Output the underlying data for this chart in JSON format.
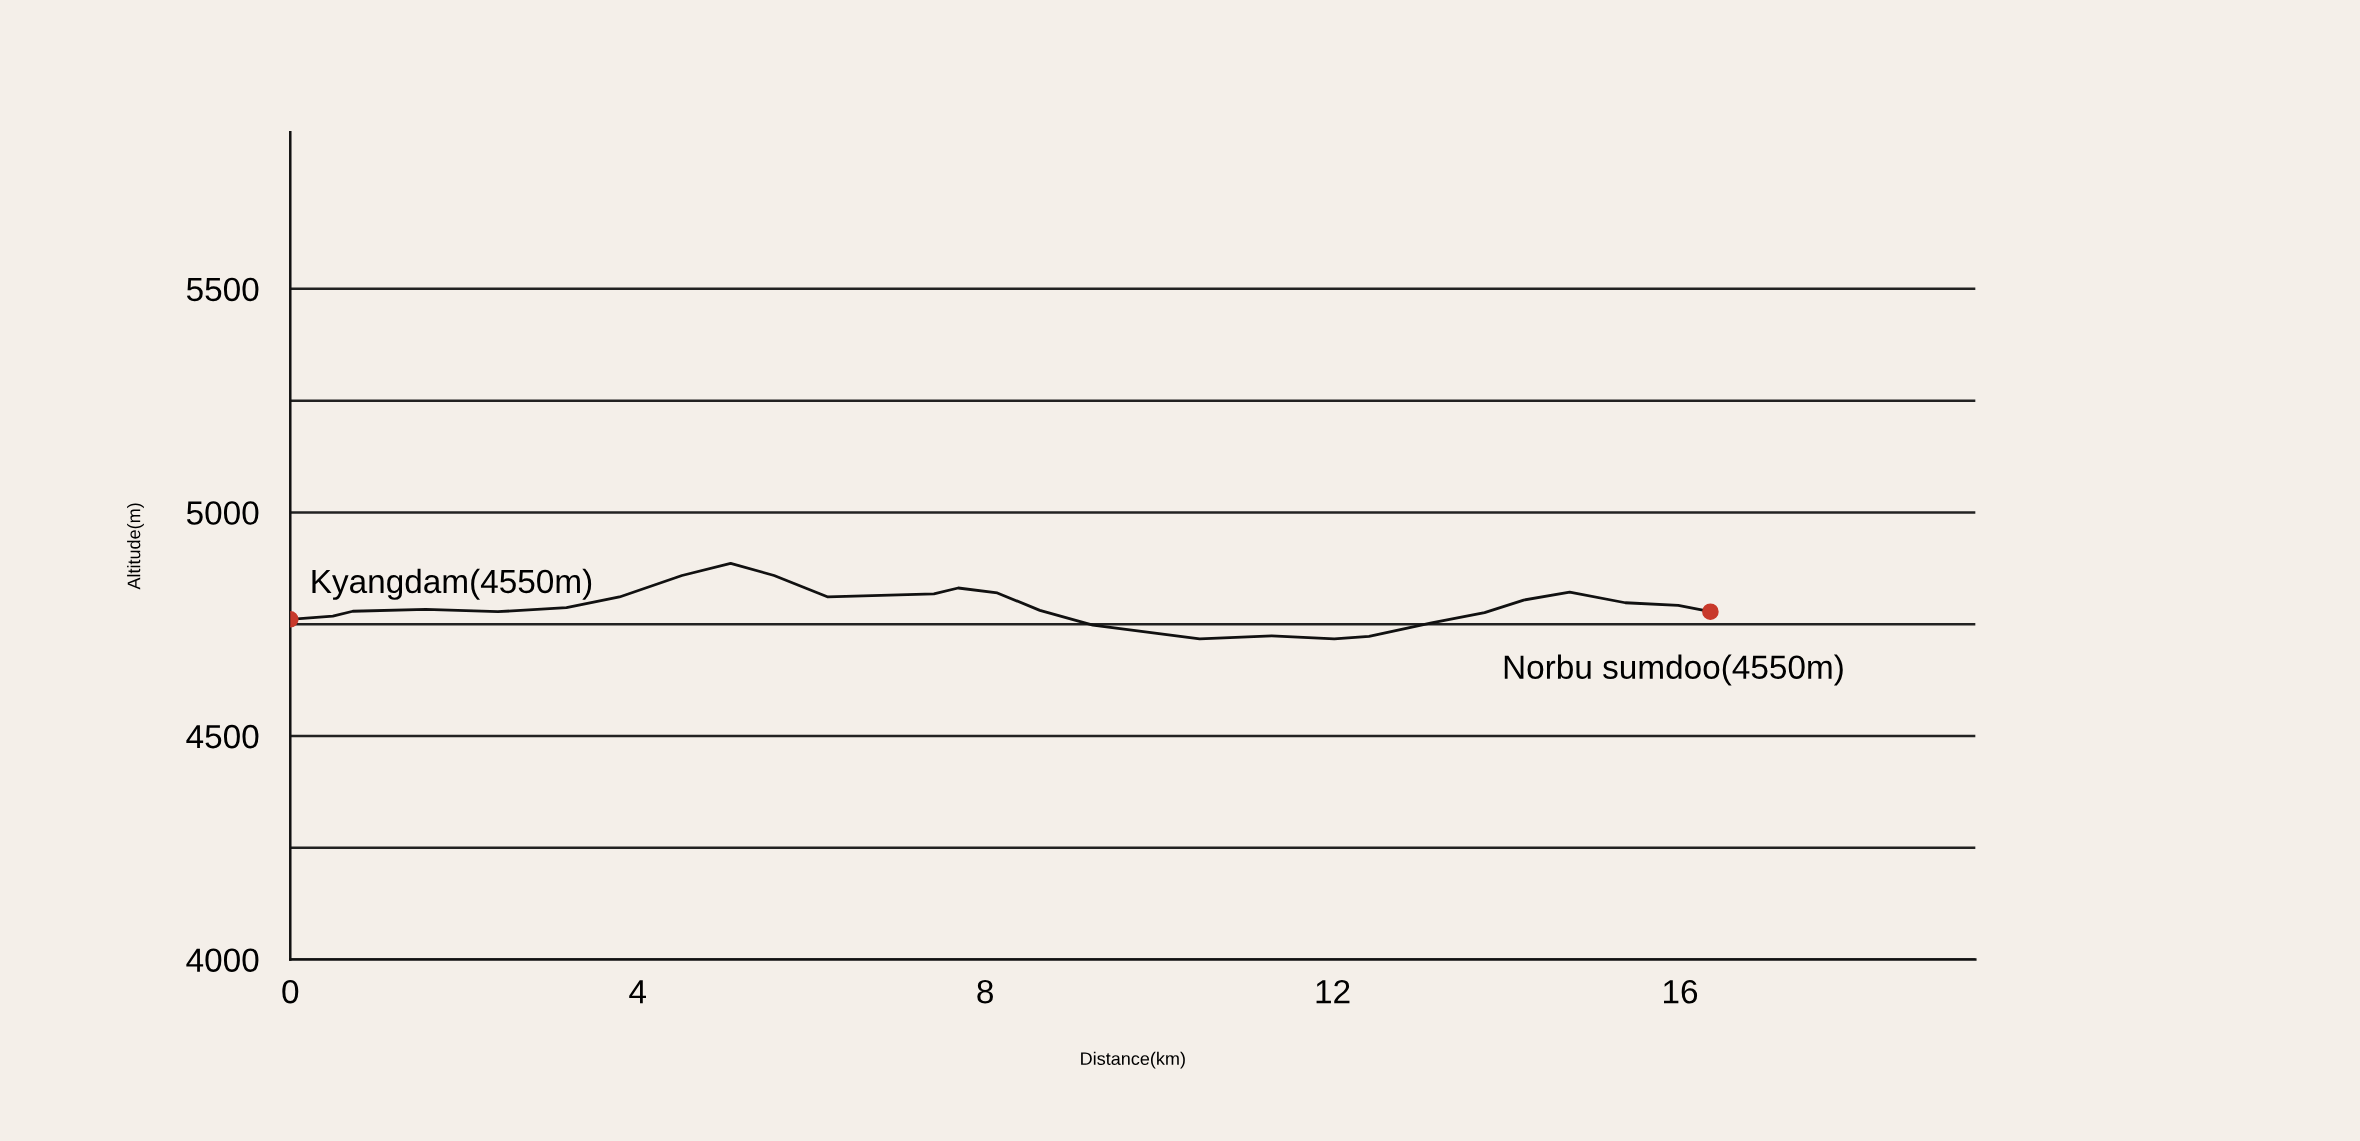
{
  "chart_data": {
    "type": "line",
    "xlabel": "Distance(km)",
    "ylabel": "Altitude(m)",
    "xlim": [
      0,
      19.4
    ],
    "ylim": [
      4000,
      5850
    ],
    "xticks": [
      0,
      4,
      8,
      12,
      16
    ],
    "yticks": [
      4000,
      {
        "value": 4250,
        "label": null
      },
      4500,
      {
        "value": 4750,
        "label": null
      },
      5000,
      {
        "value": 5250,
        "label": null
      },
      5500
    ],
    "grid": "y",
    "series": [
      {
        "color": "#111111",
        "marker": "none",
        "x": [
          0,
          0.49,
          0.72,
          1.56,
          2.39,
          3.18,
          3.79,
          4.51,
          5.07,
          5.57,
          6.19,
          7.41,
          7.69,
          8.14,
          8.63,
          9.24,
          10.47,
          11.3,
          12.02,
          12.42,
          13.14,
          13.75,
          14.2,
          14.73,
          15.37,
          15.98,
          16.35
        ],
        "values": [
          4761,
          4768,
          4779,
          4783,
          4778,
          4787,
          4811,
          4859,
          4886,
          4859,
          4811,
          4818,
          4831,
          4820,
          4781,
          4748,
          4717,
          4724,
          4717,
          4723,
          4753,
          4776,
          4804,
          4822,
          4798,
          4792,
          4778
        ]
      },
      {
        "type": "scatter",
        "color": "#c8392b",
        "marker": "circle",
        "x": [
          0,
          16.35
        ],
        "values": [
          4761,
          4778
        ]
      }
    ],
    "annotations": [
      {
        "text": "Kyangdam(4550m)",
        "x": 0,
        "y": 4761
      },
      {
        "text": "Norbu sumdoo(4550m)",
        "x": 16.35,
        "y": 4778
      }
    ]
  }
}
